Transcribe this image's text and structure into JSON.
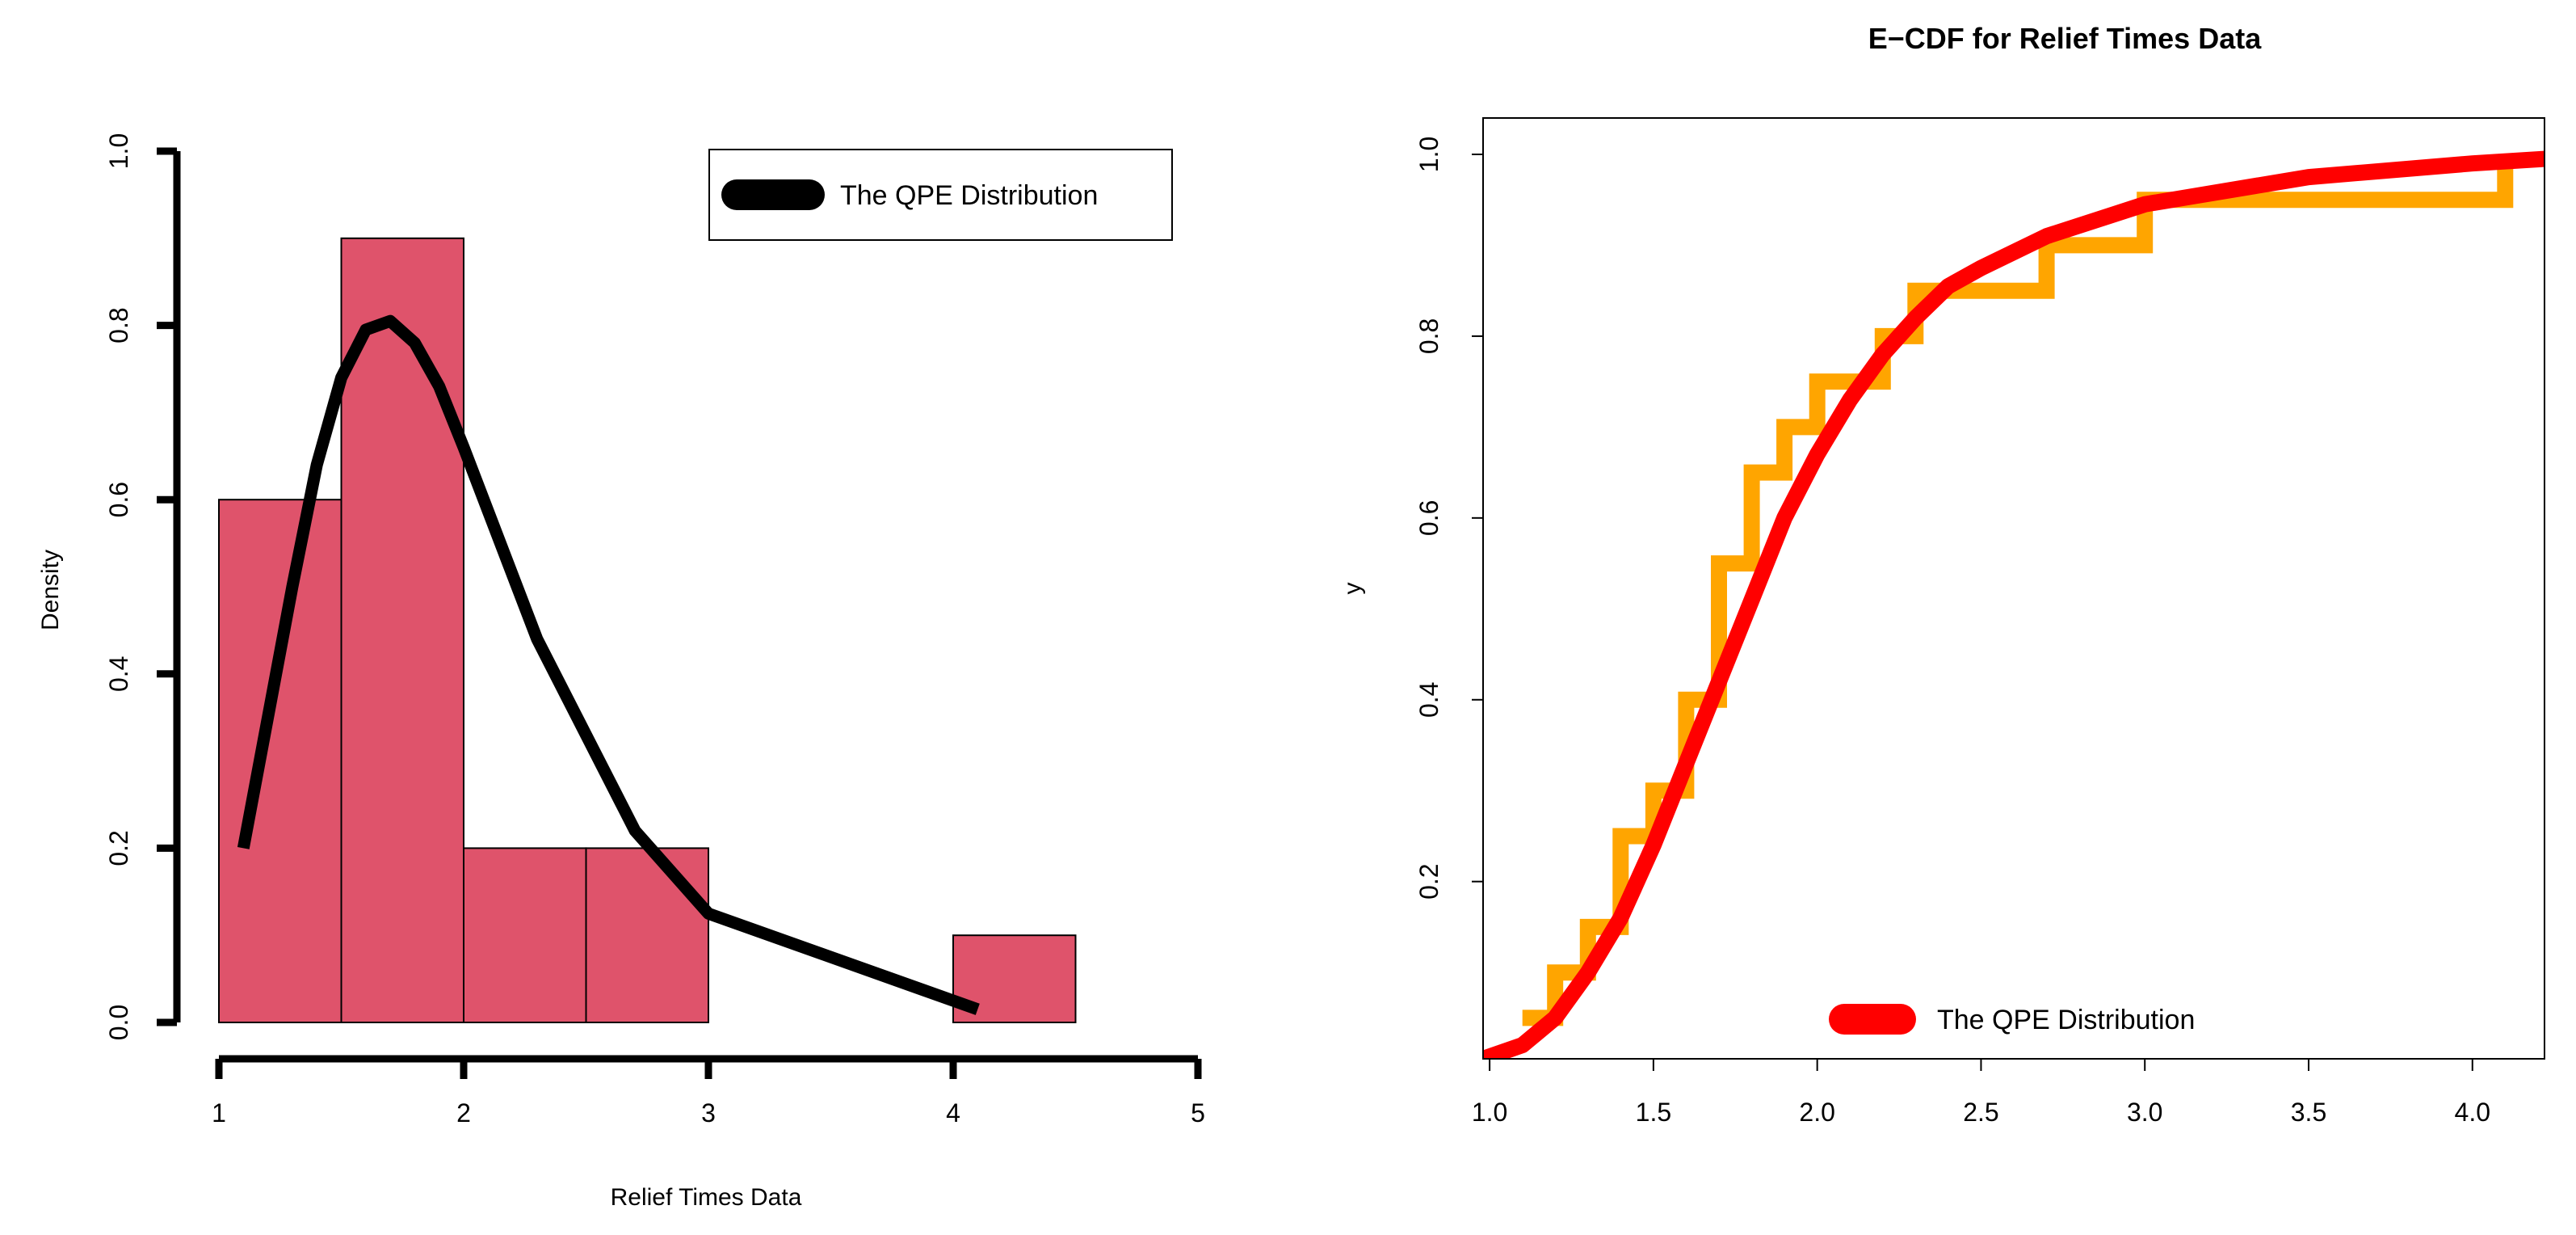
{
  "chart_data": [
    {
      "type": "bar",
      "subtype": "histogram",
      "title": "",
      "xlabel": "Relief Times Data",
      "ylabel": "Density",
      "xlim": [
        1,
        5
      ],
      "ylim": [
        0,
        1
      ],
      "x_ticks": [
        "1",
        "2",
        "3",
        "4",
        "5"
      ],
      "y_ticks": [
        "0.0",
        "0.2",
        "0.4",
        "0.6",
        "0.8",
        "1.0"
      ],
      "bins": [
        {
          "from": 1.0,
          "to": 1.5,
          "density": 0.6
        },
        {
          "from": 1.5,
          "to": 2.0,
          "density": 0.9
        },
        {
          "from": 2.0,
          "to": 2.5,
          "density": 0.2
        },
        {
          "from": 2.5,
          "to": 3.0,
          "density": 0.2
        },
        {
          "from": 3.0,
          "to": 3.5,
          "density": 0.0
        },
        {
          "from": 3.5,
          "to": 4.0,
          "density": 0.0
        },
        {
          "from": 4.0,
          "to": 4.5,
          "density": 0.1
        }
      ],
      "bar_color": "#DF536B",
      "series": [
        {
          "name": "The QPE Distribution",
          "color": "#000000",
          "x": [
            1.1,
            1.2,
            1.3,
            1.4,
            1.5,
            1.6,
            1.7,
            1.8,
            1.9,
            2.0,
            2.3,
            2.7,
            3.0,
            4.1
          ],
          "y": [
            0.2,
            0.35,
            0.5,
            0.64,
            0.74,
            0.795,
            0.805,
            0.78,
            0.73,
            0.66,
            0.44,
            0.22,
            0.125,
            0.015
          ]
        }
      ],
      "legend": {
        "labels": [
          "The QPE Distribution"
        ],
        "position": "top-right"
      }
    },
    {
      "type": "line",
      "subtype": "step-ecdf",
      "title": "E−CDF for Relief Times Data",
      "xlabel": "",
      "ylabel": "y",
      "xlim": [
        0.98,
        4.22
      ],
      "ylim": [
        0.005,
        1.04
      ],
      "x_ticks": [
        "1.0",
        "1.5",
        "2.0",
        "2.5",
        "3.0",
        "3.5",
        "4.0"
      ],
      "y_ticks": [
        "0.2",
        "0.4",
        "0.6",
        "0.8",
        "1.0"
      ],
      "series": [
        {
          "name": "E-CDF",
          "color": "#FFA500",
          "x": [
            1.1,
            1.2,
            1.3,
            1.4,
            1.5,
            1.6,
            1.7,
            1.8,
            1.9,
            2.0,
            2.2,
            2.3,
            2.7,
            3.0,
            4.1
          ],
          "y": [
            0.05,
            0.1,
            0.15,
            0.25,
            0.3,
            0.4,
            0.55,
            0.65,
            0.7,
            0.75,
            0.8,
            0.85,
            0.9,
            0.95,
            1.0
          ]
        },
        {
          "name": "The QPE Distribution",
          "color": "#FF0000",
          "x": [
            0.98,
            1.1,
            1.2,
            1.3,
            1.4,
            1.5,
            1.6,
            1.7,
            1.8,
            1.9,
            2.0,
            2.1,
            2.2,
            2.3,
            2.4,
            2.5,
            2.7,
            3.0,
            3.5,
            4.0,
            4.22
          ],
          "y": [
            0.005,
            0.02,
            0.05,
            0.1,
            0.16,
            0.24,
            0.33,
            0.42,
            0.51,
            0.6,
            0.67,
            0.73,
            0.78,
            0.82,
            0.855,
            0.875,
            0.91,
            0.945,
            0.975,
            0.99,
            0.995
          ]
        }
      ],
      "legend": {
        "labels": [
          "The QPE Distribution"
        ],
        "position": "bottom-center"
      }
    }
  ]
}
